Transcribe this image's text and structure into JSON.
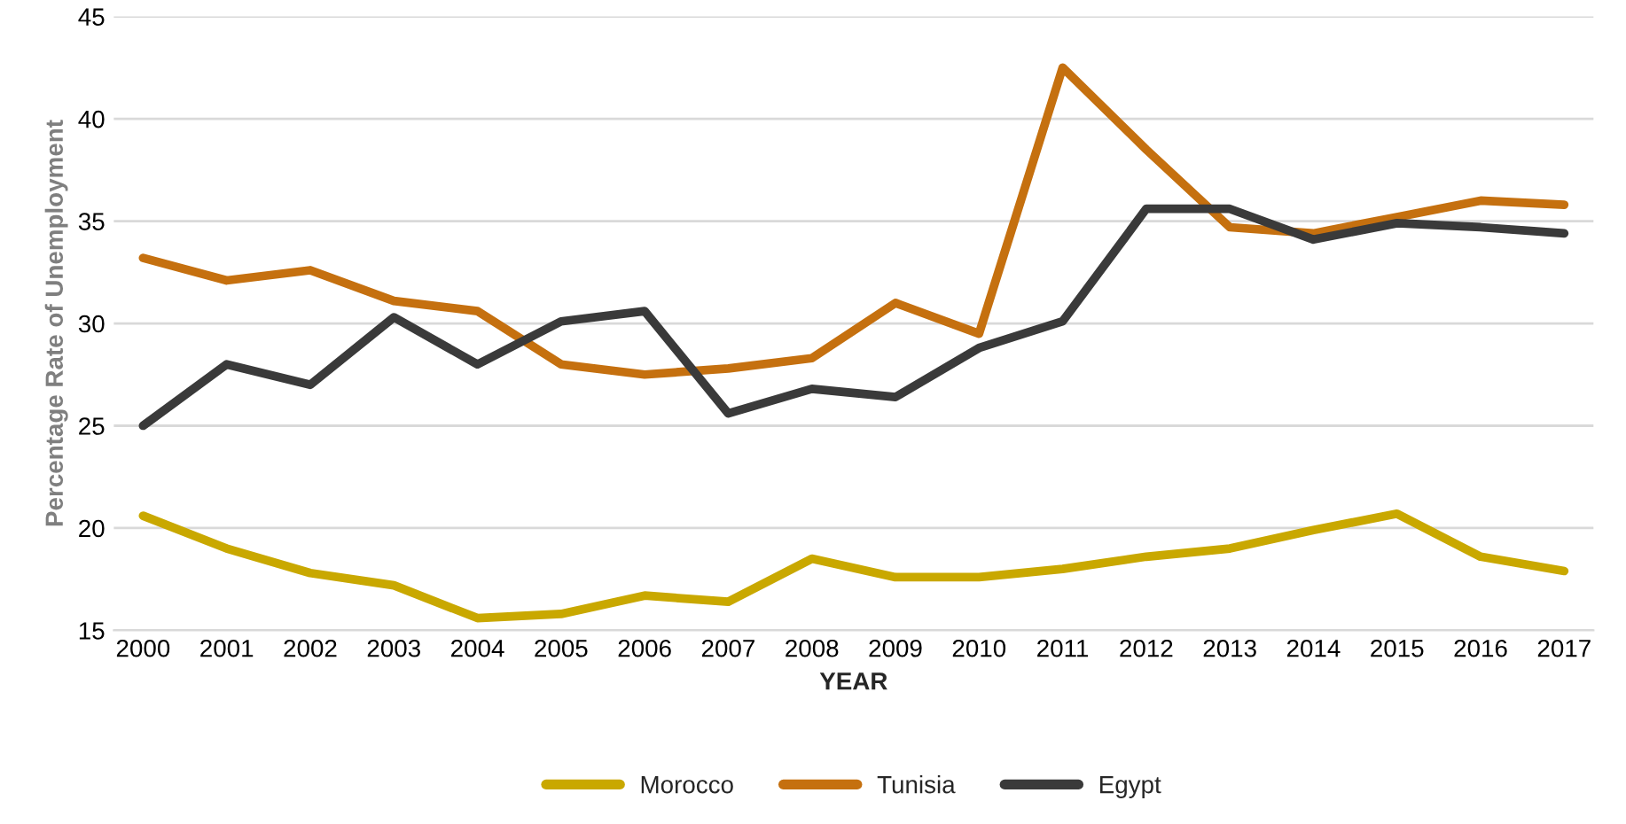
{
  "chart_data": {
    "type": "line",
    "xlabel": "YEAR",
    "ylabel": "Percentage Rate of Unemployment",
    "categories": [
      "2000",
      "2001",
      "2002",
      "2003",
      "2004",
      "2005",
      "2006",
      "2007",
      "2008",
      "2009",
      "2010",
      "2011",
      "2012",
      "2013",
      "2014",
      "2015",
      "2016",
      "2017"
    ],
    "series": [
      {
        "name": "Morocco",
        "color": "#c9a800",
        "values": [
          20.6,
          19.0,
          17.8,
          17.2,
          15.6,
          15.8,
          16.7,
          16.4,
          18.5,
          17.6,
          17.6,
          18.0,
          18.6,
          19.0,
          19.9,
          20.7,
          18.6,
          17.9
        ]
      },
      {
        "name": "Tunisia",
        "color": "#c5700f",
        "values": [
          33.2,
          32.1,
          32.6,
          31.1,
          30.6,
          28.0,
          27.5,
          27.8,
          28.3,
          31.0,
          29.5,
          42.5,
          38.5,
          34.7,
          34.4,
          35.2,
          36.0,
          35.8
        ]
      },
      {
        "name": "Egypt",
        "color": "#3a3a3a",
        "values": [
          25.0,
          28.0,
          27.0,
          30.3,
          28.0,
          30.1,
          30.6,
          25.6,
          26.8,
          26.4,
          28.8,
          30.1,
          35.6,
          35.6,
          34.1,
          34.9,
          34.7,
          34.4
        ]
      }
    ],
    "ylim": [
      15,
      45
    ],
    "yticks": [
      15,
      20,
      25,
      30,
      35,
      40,
      45
    ],
    "grid": "y",
    "legend": "bottom",
    "marker": "none",
    "line_style": "solid"
  }
}
